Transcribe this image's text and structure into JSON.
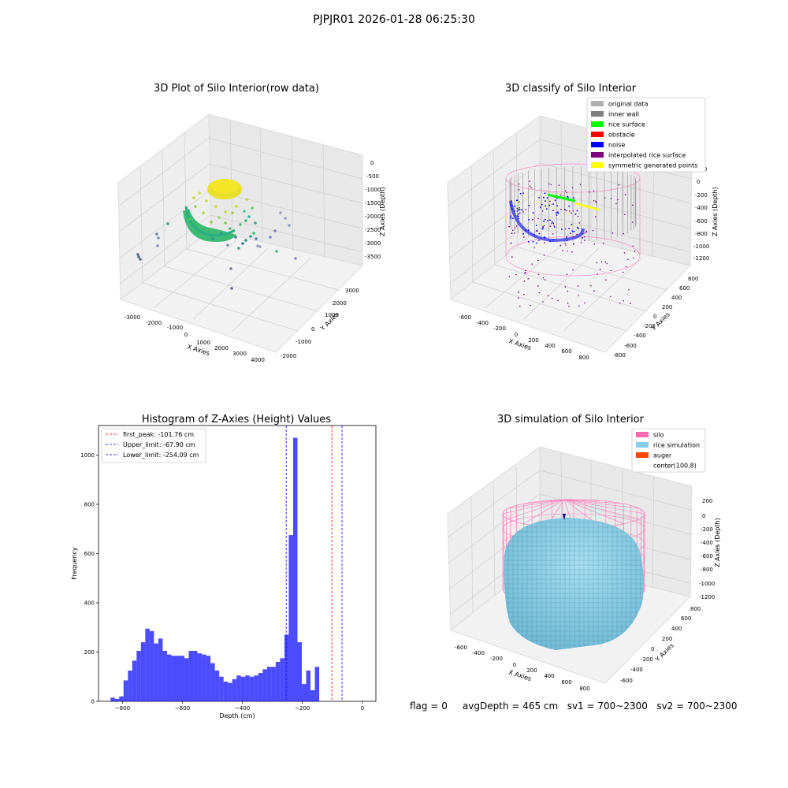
{
  "figure": {
    "suptitle": "PJPJR01 2026-01-28 06:25:30",
    "status_line": {
      "flag": "flag = 0",
      "avg_depth": "avgDepth = 465 cm",
      "sv1": "sv1 = 700~2300",
      "sv2": "sv2 = 700~2300"
    }
  },
  "chart_data": [
    {
      "type": "scatter",
      "projection": "3d",
      "title": "3D Plot of Silo Interior(row data)",
      "xlabel": "X Axies",
      "ylabel": "Y Axies",
      "zlabel": "Z Axies (Depth)",
      "x_ticks": [
        "-3000",
        "-2000",
        "-1000",
        "0",
        "1000",
        "2000",
        "3000",
        "4000"
      ],
      "y_ticks": [
        "-2000",
        "-1000",
        "0",
        "1000",
        "2000",
        "3000"
      ],
      "z_ticks": [
        "0",
        "-500",
        "-1000",
        "-1500",
        "-2000",
        "-2500",
        "-3000",
        "-3500"
      ],
      "colormap": "viridis"
    },
    {
      "type": "scatter",
      "projection": "3d",
      "title": "3D classify of Silo Interior",
      "xlabel": "X Axies",
      "ylabel": "Y Axies",
      "zlabel": "Z Axies (Depth)",
      "x_ticks": [
        "-600",
        "-400",
        "-200",
        "0",
        "200",
        "400",
        "600",
        "800"
      ],
      "y_ticks": [
        "-800",
        "-600",
        "-400",
        "-200",
        "0",
        "200",
        "400",
        "600",
        "800"
      ],
      "z_ticks": [
        "200",
        "0",
        "-200",
        "-400",
        "-600",
        "-800",
        "-1000",
        "-1200"
      ],
      "legend": [
        {
          "label": "original data",
          "color": "#b0b0b0"
        },
        {
          "label": "inner wall",
          "color": "#808080"
        },
        {
          "label": "rice surface",
          "color": "#00ff00"
        },
        {
          "label": "obstacle",
          "color": "#ff0000"
        },
        {
          "label": "noise",
          "color": "#0000ff"
        },
        {
          "label": "interpolated rice surface",
          "color": "#800080"
        },
        {
          "label": "symmetric generated points",
          "color": "#ffff00"
        }
      ],
      "legend_position": "top-right"
    },
    {
      "type": "bar",
      "title": "Histogram of Z-Axies (Height) Values",
      "xlabel": "Depth (cm)",
      "ylabel": "Frequency",
      "xlim": [
        -880,
        45
      ],
      "ylim": [
        0,
        1120
      ],
      "x_ticks": [
        -800,
        -600,
        -400,
        -200,
        0
      ],
      "y_ticks": [
        0,
        200,
        400,
        600,
        800,
        1000
      ],
      "bin_start": -840,
      "bin_width": 14.5,
      "values": [
        15,
        10,
        20,
        85,
        125,
        165,
        205,
        240,
        295,
        285,
        235,
        255,
        205,
        190,
        185,
        185,
        185,
        175,
        205,
        205,
        195,
        190,
        185,
        155,
        125,
        100,
        80,
        75,
        90,
        105,
        100,
        105,
        100,
        105,
        115,
        130,
        140,
        140,
        160,
        175,
        270,
        675,
        1070,
        240,
        70,
        125,
        45,
        140
      ],
      "bar_color": "#0000ff",
      "vlines": [
        {
          "label": "first_peak: -101.76 cm",
          "x": -101.76,
          "color": "#ff0000"
        },
        {
          "label": "Upper_limit: -67.90 cm",
          "x": -67.9,
          "color": "#0000ff"
        },
        {
          "label": "Lower_limit: -254.09 cm",
          "x": -254.09,
          "color": "#0000ff"
        }
      ],
      "legend_position": "top-left"
    },
    {
      "type": "scatter",
      "projection": "3d",
      "title": "3D simulation of Silo Interior",
      "xlabel": "X Axies",
      "ylabel": "Y Axies",
      "zlabel": "Z Axies (Depth)",
      "x_ticks": [
        "-600",
        "-400",
        "-200",
        "0",
        "200",
        "400",
        "600",
        "800"
      ],
      "y_ticks": [
        "-600",
        "-400",
        "-200",
        "0",
        "200",
        "400",
        "600",
        "800"
      ],
      "z_ticks": [
        "200",
        "0",
        "-200",
        "-400",
        "-600",
        "-800",
        "-1000",
        "-1200"
      ],
      "legend": [
        {
          "label": "silo",
          "color": "#ff69b4"
        },
        {
          "label": "rice simulation",
          "color": "#87ceeb"
        },
        {
          "label": "auger",
          "color": "#ff4500"
        },
        {
          "label": "center(100,8)",
          "color": "#ffffff"
        }
      ],
      "legend_position": "top-right"
    }
  ]
}
